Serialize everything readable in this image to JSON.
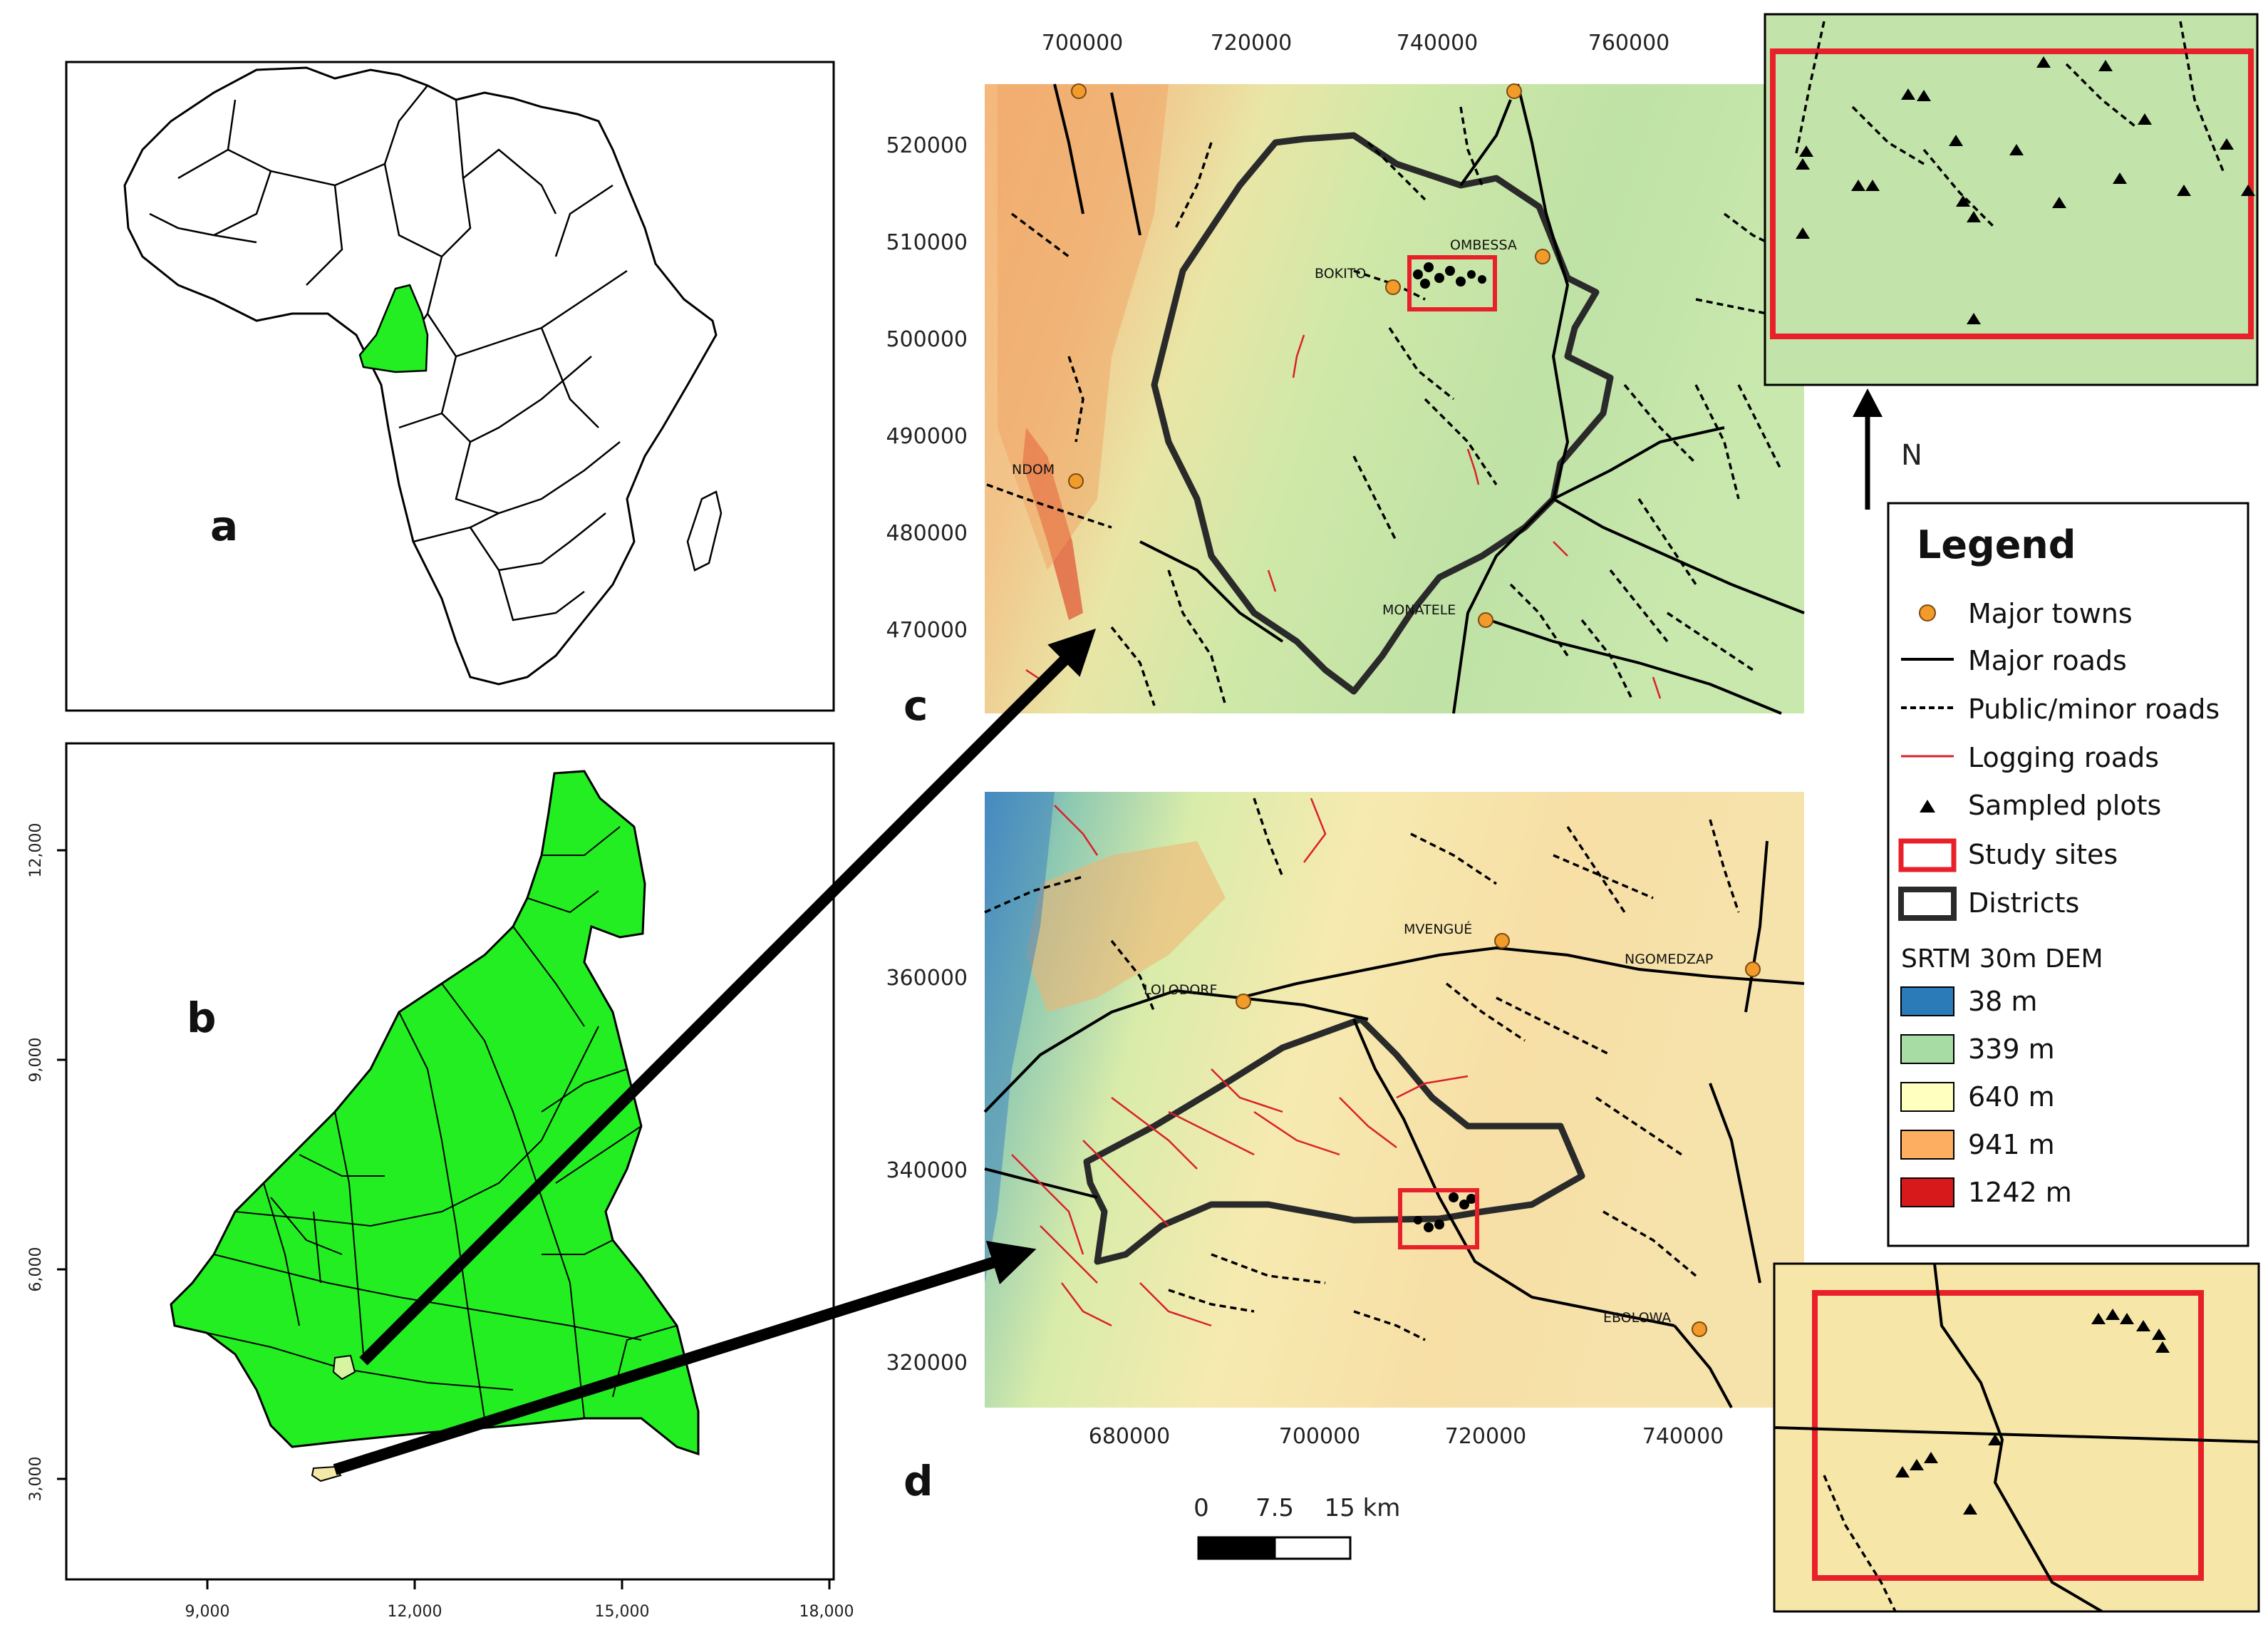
{
  "panels": {
    "a": {
      "letter": "a"
    },
    "b": {
      "letter": "b",
      "x_ticks": [
        "9,000",
        "12,000",
        "15,000",
        "18,000"
      ],
      "y_ticks": [
        "3,000",
        "6,000",
        "9,000",
        "12,000"
      ]
    },
    "c": {
      "letter": "c",
      "x_ticks": [
        "700000",
        "720000",
        "740000",
        "760000"
      ],
      "y_ticks": [
        "520000",
        "510000",
        "500000",
        "490000",
        "480000",
        "470000"
      ],
      "towns": [
        "OMBESSA",
        "BOKITO",
        "NDOM",
        "MONATELE"
      ]
    },
    "d": {
      "letter": "d",
      "x_ticks": [
        "680000",
        "700000",
        "720000",
        "740000"
      ],
      "y_ticks": [
        "360000",
        "340000",
        "320000"
      ],
      "towns": [
        "MVENGUÉ",
        "NGOMEDZAP",
        "LOLODORF",
        "EBOLOWA"
      ]
    }
  },
  "north_arrow": {
    "label": "N"
  },
  "scale_bar": {
    "labels": [
      "0",
      "7.5",
      "15 km"
    ]
  },
  "legend": {
    "title": "Legend",
    "items": [
      {
        "label": "Major towns",
        "symbol": "town-dot"
      },
      {
        "label": "Major roads",
        "symbol": "solid-line"
      },
      {
        "label": "Public/minor roads",
        "symbol": "dashed-line"
      },
      {
        "label": "Logging roads",
        "symbol": "red-line"
      },
      {
        "label": "Sampled plots",
        "symbol": "triangle"
      },
      {
        "label": "Study sites",
        "symbol": "red-box"
      },
      {
        "label": "Districts",
        "symbol": "black-box"
      }
    ],
    "dem_title": "SRTM 30m DEM",
    "dem_items": [
      {
        "label": "38 m",
        "color": "#2b7bb9"
      },
      {
        "label": "339 m",
        "color": "#a8dca5"
      },
      {
        "label": "640 m",
        "color": "#ffffbf"
      },
      {
        "label": "941 m",
        "color": "#fdae61"
      },
      {
        "label": "1242 m",
        "color": "#d7191c"
      }
    ]
  },
  "colors": {
    "cameroon_green": "#22ee22",
    "town": "#f29b2a",
    "study_site": "#e8202a",
    "logging_road": "#d9202a"
  }
}
